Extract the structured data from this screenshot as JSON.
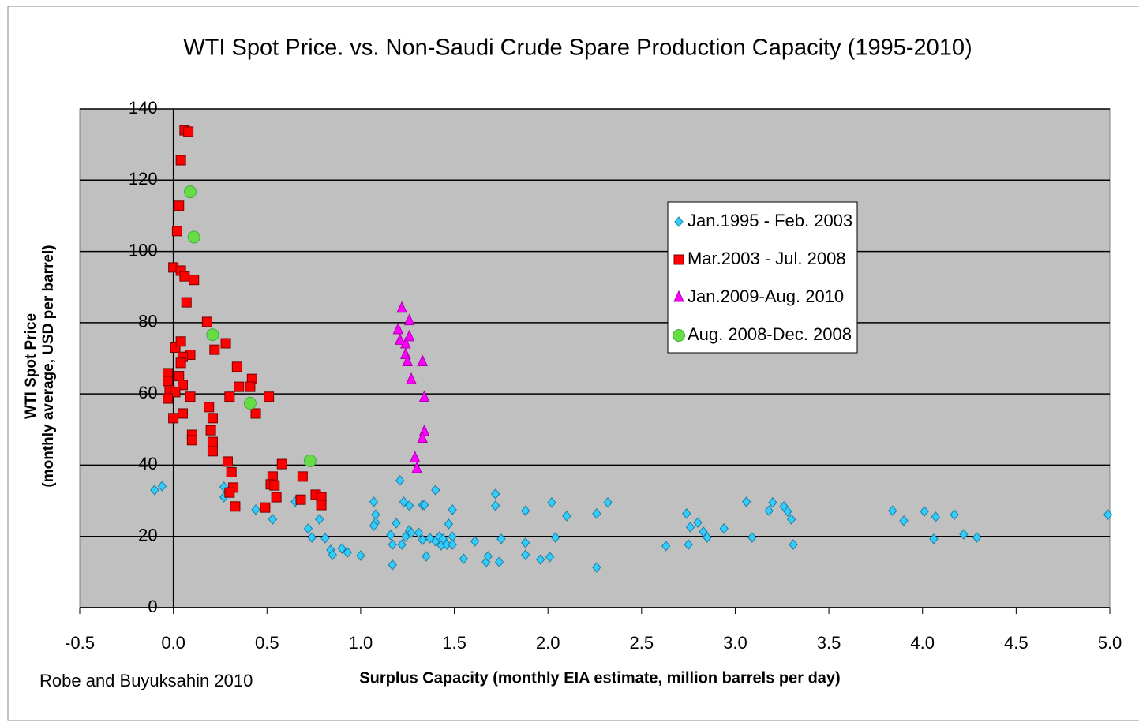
{
  "chart_data": {
    "type": "scatter",
    "title": "WTI Spot Price. vs. Non-Saudi Crude Spare Production Capacity (1995-2010)",
    "xlabel": "Surplus Capacity (monthly EIA estimate, million barrels per day)",
    "ylabel": [
      "WTI Spot Price",
      "(monthly average, USD per barrel)"
    ],
    "source": "Robe and Buyuksahin 2010",
    "xlim": [
      -0.5,
      5.0
    ],
    "xticks": [
      -0.5,
      {
        "value": 0,
        "label": "0.0"
      },
      0.5,
      {
        "value": 1,
        "label": "1.0"
      },
      1.5,
      {
        "value": 2,
        "label": "2.0"
      },
      2.5,
      {
        "value": 3,
        "label": "3.0"
      },
      3.5,
      {
        "value": 4,
        "label": "4.0"
      },
      4.5,
      {
        "value": 5,
        "label": "5.0"
      }
    ],
    "ylim": [
      0,
      140
    ],
    "yticks": [
      0,
      20,
      40,
      60,
      80,
      100,
      120,
      140
    ],
    "grid": true,
    "background": "#c0c0c0",
    "series": [
      {
        "name": "Jan.1995 - Feb. 2003",
        "color": "#33ccff",
        "marker": "diamond",
        "x": [
          -0.1,
          -0.06,
          0.27,
          0.27,
          0.44,
          0.53,
          0.65,
          0.72,
          0.74,
          0.78,
          0.81,
          0.84,
          0.85,
          0.9,
          0.93,
          1.0,
          1.07,
          1.08,
          1.08,
          1.07,
          1.16,
          1.17,
          1.17,
          1.19,
          1.21,
          1.23,
          1.22,
          1.24,
          1.26,
          1.26,
          1.27,
          1.31,
          1.33,
          1.34,
          1.33,
          1.35,
          1.37,
          1.4,
          1.4,
          1.42,
          1.43,
          1.44,
          1.46,
          1.47,
          1.49,
          1.49,
          1.49,
          1.55,
          1.61,
          1.67,
          1.68,
          1.72,
          1.72,
          1.74,
          1.75,
          1.88,
          1.88,
          1.88,
          1.96,
          2.01,
          2.02,
          2.04,
          2.1,
          2.26,
          2.26,
          2.32,
          2.63,
          2.74,
          2.75,
          2.76,
          2.8,
          2.83,
          2.85,
          2.94,
          3.06,
          3.09,
          3.18,
          3.2,
          3.26,
          3.28,
          3.3,
          3.31,
          3.84,
          3.9,
          4.01,
          4.07,
          4.06,
          4.17,
          4.22,
          4.29,
          4.99
        ],
        "values": [
          33,
          34.1,
          33.9,
          31,
          27.5,
          24.8,
          29.7,
          22.2,
          19.7,
          24.8,
          19.5,
          16.2,
          14.8,
          16.6,
          15.5,
          14.6,
          29.7,
          26.1,
          23.9,
          23,
          20.4,
          17.7,
          12,
          23.7,
          35.7,
          29.7,
          17.7,
          19.9,
          28.6,
          21.7,
          21,
          21,
          28.8,
          28.8,
          19,
          14.4,
          19.5,
          33,
          18.6,
          19.9,
          17.5,
          19.3,
          17.7,
          23.5,
          27.5,
          19.9,
          17.7,
          13.7,
          18.6,
          12.8,
          14.4,
          31.9,
          28.6,
          12.8,
          19.3,
          27.2,
          18.2,
          14.8,
          13.5,
          14.2,
          29.5,
          19.7,
          25.7,
          11.3,
          26.4,
          29.5,
          17.3,
          26.4,
          17.7,
          22.6,
          23.9,
          21.3,
          19.7,
          22.2,
          29.7,
          19.7,
          27.2,
          29.5,
          28.4,
          27,
          24.8,
          17.7,
          27.2,
          24.4,
          27,
          25.5,
          19.3,
          26.1,
          20.6,
          19.7,
          26.1
        ]
      },
      {
        "name": "Mar.2003 - Jul. 2008",
        "color": "#ff0000",
        "marker": "square",
        "x": [
          0.06,
          0.08,
          0.04,
          0.03,
          0.02,
          0.0,
          0.04,
          0.06,
          0.11,
          0.07,
          0.18,
          0.28,
          0.01,
          0.04,
          0.22,
          0.09,
          0.05,
          0.04,
          0.34,
          -0.03,
          0.03,
          0.42,
          0.41,
          0.35,
          -0.03,
          0.05,
          -0.02,
          0.01,
          -0.03,
          0.3,
          0.51,
          0.09,
          0.19,
          0.44,
          0.05,
          0.0,
          0.21,
          0.2,
          0.1,
          0.1,
          0.21,
          0.21,
          0.58,
          0.29,
          0.31,
          0.53,
          0.69,
          0.52,
          0.32,
          0.54,
          0.3,
          0.76,
          0.55,
          0.79,
          0.68,
          0.79,
          0.33,
          0.49
        ],
        "values": [
          134,
          133.6,
          125.6,
          112.8,
          105.7,
          95.5,
          94.6,
          93,
          92,
          85.7,
          80.2,
          74.2,
          73,
          74.7,
          72.4,
          71,
          70.4,
          68.7,
          67.6,
          65.8,
          65,
          64.2,
          62,
          62,
          63.6,
          62.5,
          61,
          60.5,
          58.7,
          59.2,
          59.2,
          59.2,
          56.3,
          54.5,
          54.5,
          53.2,
          53.2,
          49.8,
          48.5,
          47,
          46.5,
          43.9,
          40.3,
          41,
          38,
          36.8,
          36.8,
          34.6,
          33.7,
          34.3,
          32.3,
          31.7,
          31,
          31,
          30.3,
          28.8,
          28.4,
          28.1
        ]
      },
      {
        "name": "Jan.2009-Aug. 2010",
        "color": "#ff00ff",
        "marker": "triangle",
        "x": [
          1.22,
          1.2,
          1.26,
          1.21,
          1.24,
          1.26,
          1.24,
          1.25,
          1.33,
          1.27,
          1.34,
          1.34,
          1.33,
          1.29,
          1.3
        ],
        "values": [
          84,
          78,
          80.5,
          75,
          74,
          76,
          71,
          69,
          69,
          64,
          59,
          49.4,
          47.5,
          42,
          39
        ]
      },
      {
        "name": "Aug. 2008-Dec. 2008",
        "color": "#66dd44",
        "marker": "circle",
        "x": [
          0.09,
          0.11,
          0.21,
          0.41,
          0.73
        ],
        "values": [
          116.7,
          104,
          76.6,
          57.4,
          41.2
        ]
      }
    ]
  }
}
